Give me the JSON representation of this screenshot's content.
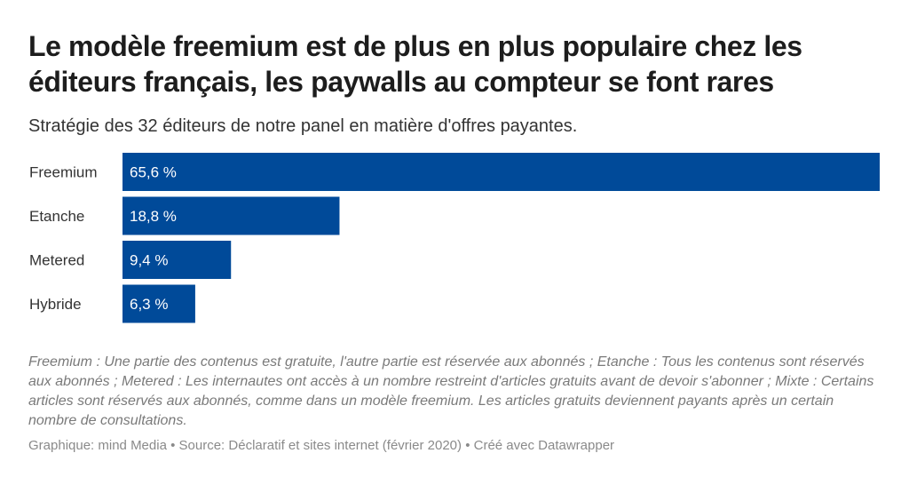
{
  "chart_data": {
    "type": "bar",
    "orientation": "horizontal",
    "title": "Le modèle freemium est de plus en plus populaire chez les éditeurs français, les paywalls au compteur se font rares",
    "subtitle": "Stratégie des 32 éditeurs de notre panel en matière d'offres payantes.",
    "categories": [
      "Freemium",
      "Etanche",
      "Metered",
      "Hybride"
    ],
    "values": [
      65.6,
      18.8,
      9.4,
      6.3
    ],
    "value_labels": [
      "65,6 %",
      "18,8 %",
      "9,4 %",
      "6,3 %"
    ],
    "xlim": [
      0,
      65.6
    ],
    "grid": false,
    "legend": "none",
    "bar_color": "#004a99"
  },
  "notes": "Freemium : Une partie des contenus est gratuite, l'autre partie est réservée aux abonnés ; Etanche : Tous les contenus sont réservés aux abonnés ; Metered : Les internautes ont accès à un nombre restreint d'articles gratuits avant de devoir s'abonner ; Mixte : Certains articles sont réservés aux abonnés, comme dans un modèle freemium. Les articles gratuits deviennent payants après un certain nombre de consultations.",
  "footer": {
    "graphic": "Graphique: mind Media",
    "separator": "•",
    "source": "Source: Déclaratif et sites internet (février 2020)",
    "created": "Créé avec Datawrapper"
  }
}
